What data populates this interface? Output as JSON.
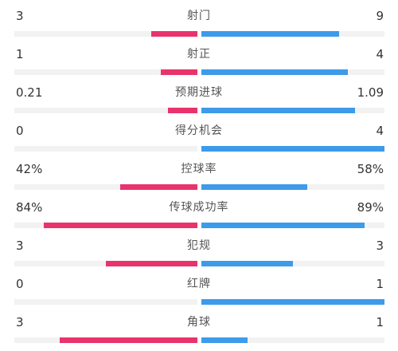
{
  "colors": {
    "home": "#e8336d",
    "away": "#3d9be9",
    "track": "#f2f2f2"
  },
  "stats": [
    {
      "name": "射门",
      "home": "3",
      "away": "9",
      "home_ratio": 0.25,
      "away_ratio": 0.75
    },
    {
      "name": "射正",
      "home": "1",
      "away": "4",
      "home_ratio": 0.2,
      "away_ratio": 0.8
    },
    {
      "name": "预期进球",
      "home": "0.21",
      "away": "1.09",
      "home_ratio": 0.16,
      "away_ratio": 0.84
    },
    {
      "name": "得分机会",
      "home": "0",
      "away": "4",
      "home_ratio": 0.0,
      "away_ratio": 1.0
    },
    {
      "name": "控球率",
      "home": "42%",
      "away": "58%",
      "home_ratio": 0.42,
      "away_ratio": 0.58
    },
    {
      "name": "传球成功率",
      "home": "84%",
      "away": "89%",
      "home_ratio": 0.84,
      "away_ratio": 0.89
    },
    {
      "name": "犯规",
      "home": "3",
      "away": "3",
      "home_ratio": 0.5,
      "away_ratio": 0.5
    },
    {
      "name": "红牌",
      "home": "0",
      "away": "1",
      "home_ratio": 0.0,
      "away_ratio": 1.0
    },
    {
      "name": "角球",
      "home": "3",
      "away": "1",
      "home_ratio": 0.75,
      "away_ratio": 0.25
    }
  ]
}
